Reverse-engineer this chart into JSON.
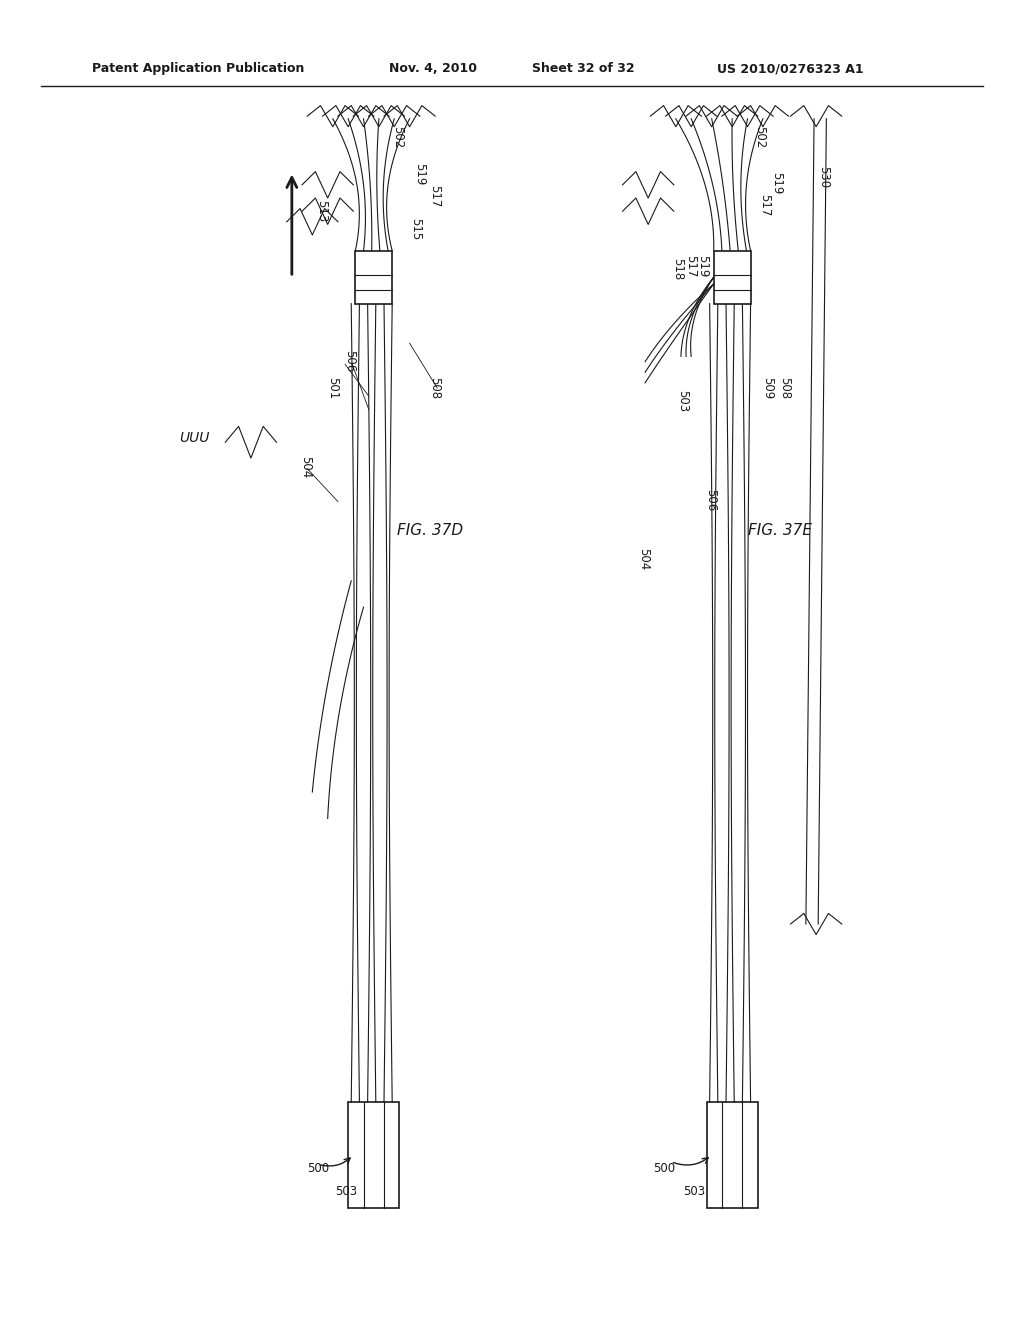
{
  "bg_color": "#ffffff",
  "header_text": "Patent Application Publication",
  "header_date": "Nov. 4, 2010",
  "header_sheet": "Sheet 32 of 32",
  "header_patent": "US 2010/0276323 A1",
  "fig1_label": "FIG. 37D",
  "fig2_label": "FIG. 37E",
  "line_color": "#1a1a1a",
  "label_color": "#111111"
}
